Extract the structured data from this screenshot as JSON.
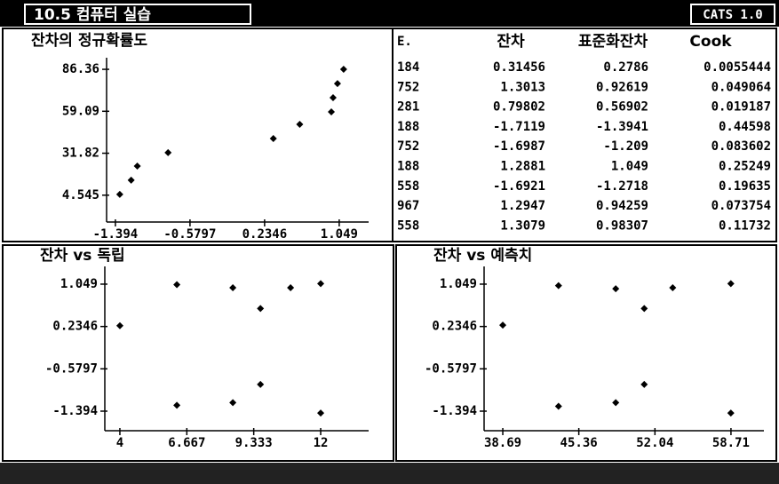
{
  "header": {
    "title": "10.5 컴퓨터 실습",
    "version": "CATS 1.0"
  },
  "table": {
    "columns": [
      "E.",
      "잔차",
      "표준화잔차",
      "Cook"
    ],
    "rows": [
      [
        "184",
        "0.31456",
        "0.2786",
        "0.0055444"
      ],
      [
        "752",
        "1.3013",
        "0.92619",
        "0.049064"
      ],
      [
        "281",
        "0.79802",
        "0.56902",
        "0.019187"
      ],
      [
        "188",
        "-1.7119",
        "-1.3941",
        "0.44598"
      ],
      [
        "752",
        "-1.6987",
        "-1.209",
        "0.083602"
      ],
      [
        "188",
        "1.2881",
        "1.049",
        "0.25249"
      ],
      [
        "558",
        "-1.6921",
        "-1.2718",
        "0.19635"
      ],
      [
        "967",
        "1.2947",
        "0.94259",
        "0.073754"
      ],
      [
        "558",
        "1.3079",
        "0.98307",
        "0.11732"
      ]
    ]
  },
  "chart_data": [
    {
      "type": "scatter",
      "title": "잔차의 정규확률도",
      "color": "#000000",
      "x": [
        -1.346,
        -1.222,
        -1.155,
        -0.819,
        0.33,
        0.618,
        0.963,
        0.982,
        1.03,
        1.097
      ],
      "values": [
        5.1,
        14.3,
        23.5,
        32.2,
        41.4,
        50.6,
        58.7,
        67.9,
        77.1,
        86.4
      ],
      "xlim": [
        -1.49,
        1.37
      ],
      "ylim": [
        -12.9,
        93.9
      ],
      "xticks": [
        -1.394,
        -0.5797,
        0.2346,
        1.049
      ],
      "yticks": [
        4.545,
        31.82,
        59.09,
        86.36
      ]
    },
    {
      "type": "scatter",
      "title": "잔차 vs 독립",
      "color": "#000000",
      "x": [
        4,
        6.27,
        6.27,
        8.5,
        8.5,
        9.6,
        9.6,
        10.8,
        12,
        12
      ],
      "values": [
        0.25,
        1.04,
        -1.28,
        0.98,
        -1.23,
        0.58,
        -0.88,
        0.98,
        1.06,
        -1.43
      ],
      "xlim": [
        3.4,
        13.91
      ],
      "ylim": [
        -1.77,
        1.39
      ],
      "xticks": [
        4,
        6.667,
        9.333,
        12
      ],
      "yticks": [
        -1.394,
        -0.5797,
        0.2346,
        1.049
      ]
    },
    {
      "type": "scatter",
      "title": "잔차 vs 예측치",
      "color": "#000000",
      "x": [
        38.69,
        43.58,
        43.58,
        48.6,
        48.6,
        51.1,
        51.1,
        53.6,
        58.7,
        58.7
      ],
      "values": [
        0.26,
        1.02,
        -1.3,
        0.96,
        -1.23,
        0.58,
        -0.88,
        0.98,
        1.06,
        -1.43
      ],
      "xlim": [
        37.05,
        61.6
      ],
      "ylim": [
        -1.77,
        1.39
      ],
      "xticks": [
        38.69,
        45.36,
        52.04,
        58.71
      ],
      "yticks": [
        -1.394,
        -0.5797,
        0.2346,
        1.049
      ]
    }
  ]
}
